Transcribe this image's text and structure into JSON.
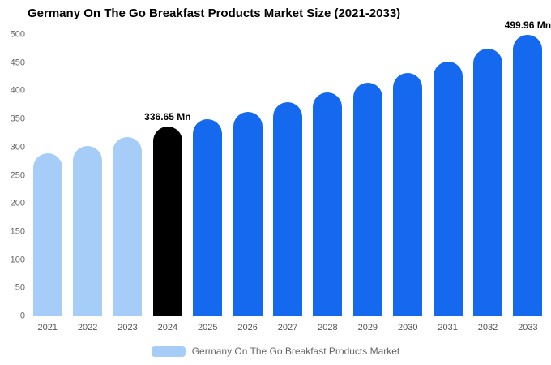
{
  "title": "Germany On The Go Breakfast Products Market Size (2021-2033)",
  "legend": {
    "label": "Germany On The Go Breakfast Products Market",
    "swatch_color": "#a6cdf8"
  },
  "colors": {
    "past": "#a6cdf8",
    "current": "#000000",
    "forecast": "#1569ee"
  },
  "chart_data": {
    "type": "bar",
    "title": "Germany On The Go Breakfast Products Market Size (2021-2033)",
    "xlabel": "",
    "ylabel": "",
    "ylim": [
      0,
      500
    ],
    "yticks": [
      0,
      50,
      100,
      150,
      200,
      250,
      300,
      350,
      400,
      450,
      500
    ],
    "grid": false,
    "legend_position": "bottom",
    "categories": [
      "2021",
      "2022",
      "2023",
      "2024",
      "2025",
      "2026",
      "2027",
      "2028",
      "2029",
      "2030",
      "2031",
      "2032",
      "2033"
    ],
    "values": [
      290,
      303,
      318,
      336.65,
      350,
      363,
      380,
      397,
      415,
      433,
      453,
      475,
      499.96
    ],
    "point_colors": [
      "past",
      "past",
      "past",
      "current",
      "forecast",
      "forecast",
      "forecast",
      "forecast",
      "forecast",
      "forecast",
      "forecast",
      "forecast",
      "forecast"
    ],
    "annotations": [
      {
        "category": "2024",
        "text": "336.65 Mn"
      },
      {
        "category": "2033",
        "text": "499.96 Mn"
      }
    ]
  }
}
